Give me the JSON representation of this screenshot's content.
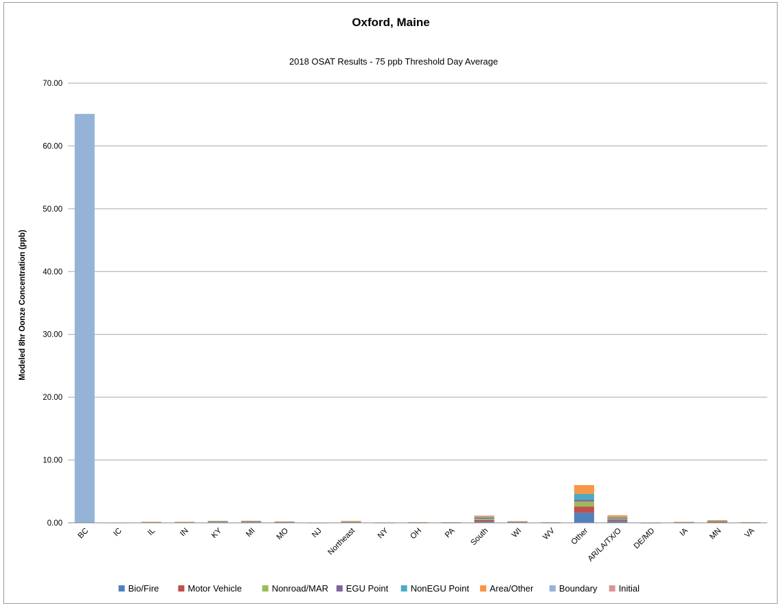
{
  "chart_data": {
    "type": "bar",
    "stacked": true,
    "title": "Oxford, Maine",
    "subtitle": "2018 OSAT Results - 75 ppb Threshold Day Average",
    "ylabel": "Modeled 8hr Oonze Concentration (ppb)",
    "xlabel": "",
    "ylim": [
      0,
      70
    ],
    "yticks": [
      "0.00",
      "10.00",
      "20.00",
      "30.00",
      "40.00",
      "50.00",
      "60.00",
      "70.00"
    ],
    "grid": true,
    "legend_position": "bottom",
    "categories": [
      "BC",
      "IC",
      "IL",
      "IN",
      "KY",
      "MI",
      "MO",
      "NJ",
      "Northeast",
      "NY",
      "OH",
      "PA",
      "South",
      "WI",
      "WV",
      "Other",
      "AR/LA/TX/O",
      "DE/MD",
      "IA",
      "MN",
      "VA"
    ],
    "series": [
      {
        "name": "Bio/Fire",
        "color": "#4f81bd",
        "values": [
          0,
          0,
          0.03,
          0.03,
          0.05,
          0.05,
          0.03,
          0,
          0.04,
          0,
          0.02,
          0.02,
          0.2,
          0.04,
          0.02,
          1.6,
          0.3,
          0,
          0.02,
          0.05,
          0.02
        ]
      },
      {
        "name": "Motor Vehicle",
        "color": "#c0504d",
        "values": [
          0,
          0,
          0.03,
          0.03,
          0.05,
          0.06,
          0.04,
          0,
          0.05,
          0.02,
          0.02,
          0.02,
          0.25,
          0.05,
          0.02,
          1.0,
          0.2,
          0.01,
          0.03,
          0.08,
          0.02
        ]
      },
      {
        "name": "Nonroad/MAR",
        "color": "#9bbb59",
        "values": [
          0,
          0,
          0.02,
          0.02,
          0.04,
          0.05,
          0.03,
          0,
          0.04,
          0.01,
          0.01,
          0.01,
          0.2,
          0.04,
          0.01,
          0.8,
          0.15,
          0.01,
          0.02,
          0.06,
          0.01
        ]
      },
      {
        "name": "EGU Point",
        "color": "#8064a2",
        "values": [
          0,
          0,
          0.02,
          0.02,
          0.05,
          0.03,
          0.03,
          0,
          0.02,
          0.01,
          0.02,
          0.01,
          0.15,
          0.03,
          0.01,
          0.3,
          0.1,
          0.01,
          0.02,
          0.04,
          0.02
        ]
      },
      {
        "name": "NonEGU Point",
        "color": "#4bacc6",
        "values": [
          0,
          0,
          0.02,
          0.02,
          0.04,
          0.05,
          0.03,
          0,
          0.03,
          0.01,
          0.01,
          0.01,
          0.15,
          0.04,
          0.01,
          0.9,
          0.15,
          0.01,
          0.02,
          0.05,
          0.01
        ]
      },
      {
        "name": "Area/Other",
        "color": "#f79646",
        "values": [
          0,
          0.02,
          0.05,
          0.05,
          0.08,
          0.1,
          0.06,
          0.01,
          0.12,
          0.02,
          0.03,
          0.03,
          0.2,
          0.06,
          0.02,
          1.4,
          0.3,
          0.01,
          0.05,
          0.15,
          0.03
        ]
      },
      {
        "name": "Boundary",
        "color": "#95b3d7",
        "values": [
          65.1,
          0,
          0,
          0,
          0,
          0,
          0,
          0,
          0,
          0,
          0,
          0,
          0,
          0,
          0,
          0,
          0,
          0,
          0,
          0,
          0
        ]
      },
      {
        "name": "Initial",
        "color": "#d99694",
        "values": [
          0,
          0.03,
          0,
          0,
          0,
          0,
          0,
          0,
          0,
          0,
          0,
          0,
          0,
          0,
          0,
          0,
          0,
          0,
          0,
          0,
          0
        ]
      }
    ]
  }
}
